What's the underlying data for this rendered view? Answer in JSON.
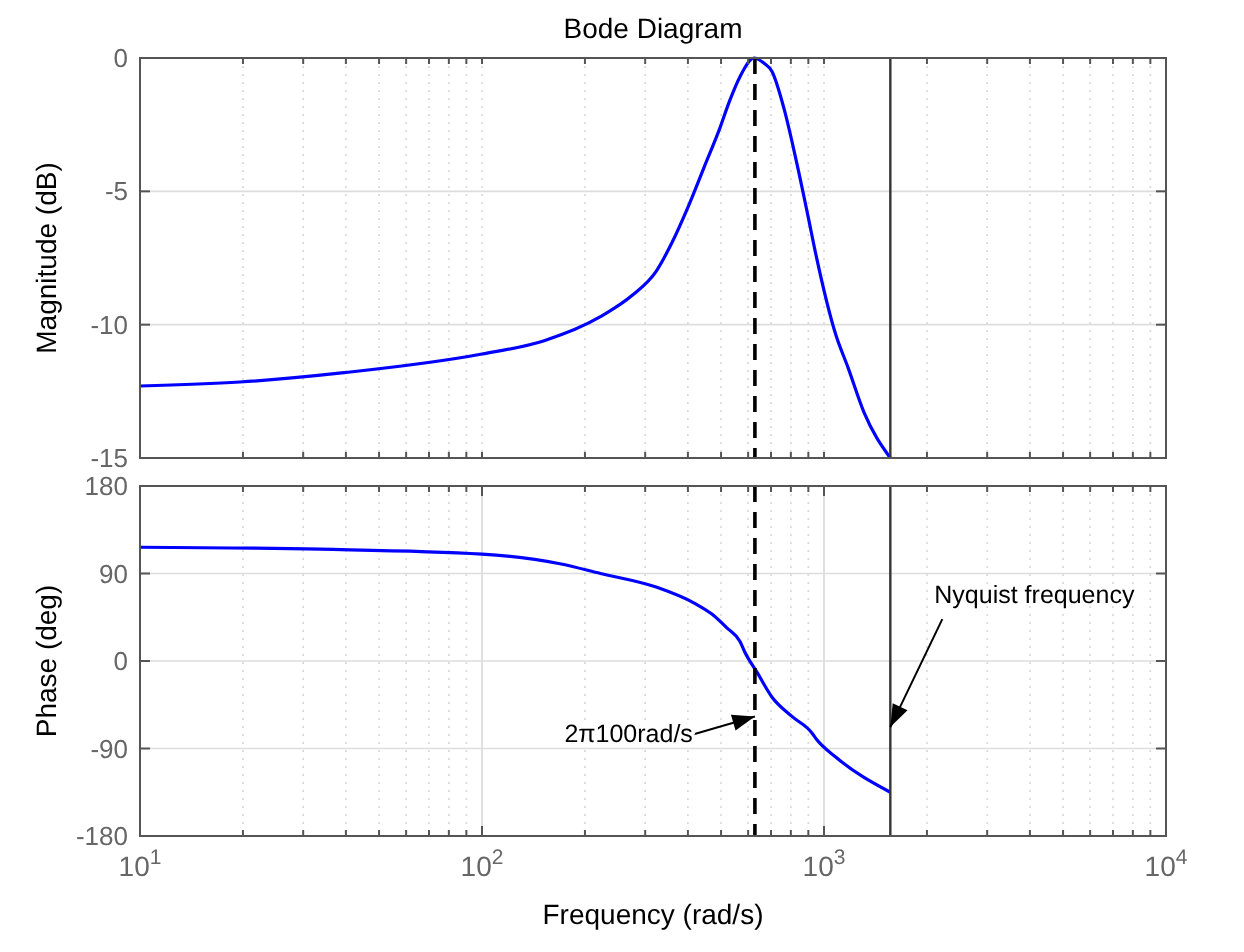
{
  "chart_data": [
    {
      "type": "line",
      "title": "Bode Diagram",
      "ylabel": "Magnitude (dB)",
      "log": "x",
      "grid": true,
      "tick_labels": "y",
      "xlim": [
        10,
        10000
      ],
      "ylim": [
        -15,
        0
      ],
      "yticks": [
        -15,
        -10,
        -5,
        0
      ],
      "xticks": [
        {
          "value": 10,
          "label": null
        },
        {
          "value": 20,
          "label": null
        },
        {
          "value": 30,
          "label": null
        },
        {
          "value": 40,
          "label": null
        },
        {
          "value": 50,
          "label": null
        },
        {
          "value": 60,
          "label": null
        },
        {
          "value": 70,
          "label": null
        },
        {
          "value": 80,
          "label": null
        },
        {
          "value": 90,
          "label": null
        },
        {
          "value": 100,
          "label": null
        },
        {
          "value": 200,
          "label": null
        },
        {
          "value": 300,
          "label": null
        },
        {
          "value": 400,
          "label": null
        },
        {
          "value": 500,
          "label": null
        },
        {
          "value": 600,
          "label": null
        },
        {
          "value": 700,
          "label": null
        },
        {
          "value": 800,
          "label": null
        },
        {
          "value": 900,
          "label": null
        },
        {
          "value": 1000,
          "label": null
        },
        {
          "value": 2000,
          "label": null
        },
        {
          "value": 3000,
          "label": null
        },
        {
          "value": 4000,
          "label": null
        },
        {
          "value": 5000,
          "label": null
        },
        {
          "value": 6000,
          "label": null
        },
        {
          "value": 7000,
          "label": null
        },
        {
          "value": 8000,
          "label": null
        },
        {
          "value": 9000,
          "label": null
        },
        {
          "value": 10000,
          "label": null
        }
      ],
      "x": [
        10,
        19.6,
        39.5,
        100,
        152,
        222,
        275,
        323,
        360,
        400,
        446,
        497,
        530,
        568,
        625,
        668,
        704,
        764,
        828,
        897,
        948,
        1084,
        1175,
        1310,
        1563
      ],
      "series": [
        {
          "color": "#0000ff",
          "values": [
            -12.3,
            -12.15,
            -11.8,
            -11.1,
            -10.6,
            -9.7,
            -8.9,
            -8.0,
            -6.9,
            -5.6,
            -4.1,
            -2.6,
            -1.6,
            -0.7,
            0,
            -0.2,
            -0.5,
            -1.9,
            -3.8,
            -5.9,
            -7.4,
            -10.4,
            -11.6,
            -13.3,
            -15
          ]
        }
      ],
      "ref_lines": [
        {
          "axis": "x",
          "value": 628,
          "color": "#000000",
          "line_style": "dashed"
        },
        {
          "axis": "x",
          "value": 1563,
          "color": "#333333",
          "line_style": "solid"
        }
      ]
    },
    {
      "type": "line",
      "xlabel": "Frequency  (rad/s)",
      "ylabel": "Phase (deg)",
      "log": "x",
      "grid": true,
      "xlim": [
        10,
        10000
      ],
      "ylim": [
        -180,
        180
      ],
      "yticks": [
        -180,
        -90,
        0,
        90,
        180
      ],
      "xticks": [
        {
          "value": 10,
          "label": "10$^{1}$"
        },
        {
          "value": 20,
          "label": null
        },
        {
          "value": 30,
          "label": null
        },
        {
          "value": 40,
          "label": null
        },
        {
          "value": 50,
          "label": null
        },
        {
          "value": 60,
          "label": null
        },
        {
          "value": 70,
          "label": null
        },
        {
          "value": 80,
          "label": null
        },
        {
          "value": 90,
          "label": null
        },
        {
          "value": 100,
          "label": "10$^{2}$"
        },
        {
          "value": 200,
          "label": null
        },
        {
          "value": 300,
          "label": null
        },
        {
          "value": 400,
          "label": null
        },
        {
          "value": 500,
          "label": null
        },
        {
          "value": 600,
          "label": null
        },
        {
          "value": 700,
          "label": null
        },
        {
          "value": 800,
          "label": null
        },
        {
          "value": 900,
          "label": null
        },
        {
          "value": 1000,
          "label": "10$^{3}$"
        },
        {
          "value": 2000,
          "label": null
        },
        {
          "value": 3000,
          "label": null
        },
        {
          "value": 4000,
          "label": null
        },
        {
          "value": 5000,
          "label": null
        },
        {
          "value": 6000,
          "label": null
        },
        {
          "value": 7000,
          "label": null
        },
        {
          "value": 8000,
          "label": null
        },
        {
          "value": 9000,
          "label": null
        },
        {
          "value": 10000,
          "label": "10$^{4}$"
        }
      ],
      "x": [
        10,
        33.6,
        100,
        169,
        222,
        323,
        420,
        471,
        520,
        568,
        587,
        638,
        704,
        806,
        922,
        948,
        1084,
        1563
      ],
      "series": [
        {
          "color": "#0000ff",
          "values": [
            117,
            115,
            110,
            100,
            90,
            76,
            59,
            48,
            34,
            20,
            9,
            -12,
            -37,
            -57,
            -74,
            -80,
            -99,
            -135
          ]
        }
      ],
      "ref_lines": [
        {
          "axis": "x",
          "value": 628,
          "color": "#000000",
          "line_style": "dashed"
        },
        {
          "axis": "x",
          "value": 1563,
          "color": "#333333",
          "line_style": "solid"
        }
      ],
      "annotations": [
        {
          "text": "2π100rad/s",
          "x": 628,
          "y": -57
        },
        {
          "text": "Nyquist frequency",
          "x": 1563,
          "y": -68
        }
      ]
    }
  ]
}
